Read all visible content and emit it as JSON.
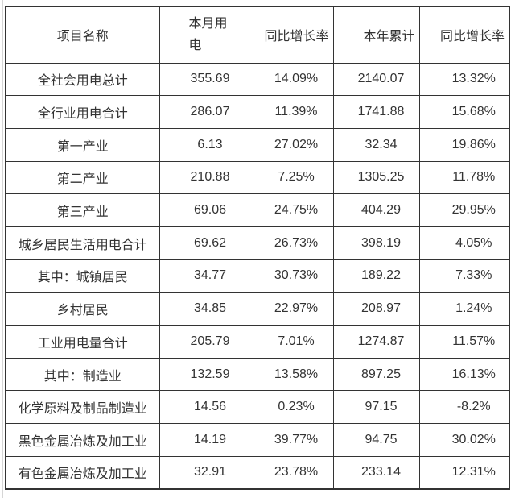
{
  "page": {
    "background": "#ffffff",
    "container_border_color": "#d6d6d6"
  },
  "table": {
    "border_color": "#333333",
    "text_color": "#333333",
    "columns": [
      {
        "key": "name",
        "label": "项目名称"
      },
      {
        "key": "month",
        "label": "本月用电"
      },
      {
        "key": "month_yoy",
        "label": "同比增长率"
      },
      {
        "key": "ytd",
        "label": "本年累计"
      },
      {
        "key": "ytd_yoy",
        "label": "同比增长率"
      }
    ],
    "rows": [
      {
        "name": "全社会用电总计",
        "month": "355.69",
        "month_yoy": "14.09%",
        "ytd": "2140.07",
        "ytd_yoy": "13.32%"
      },
      {
        "name": "全行业用电合计",
        "month": "286.07",
        "month_yoy": "11.39%",
        "ytd": "1741.88",
        "ytd_yoy": "15.68%"
      },
      {
        "name": "第一产业",
        "month": "6.13",
        "month_yoy": "27.02%",
        "ytd": "32.34",
        "ytd_yoy": "19.86%"
      },
      {
        "name": "第二产业",
        "month": "210.88",
        "month_yoy": "7.25%",
        "ytd": "1305.25",
        "ytd_yoy": "11.78%"
      },
      {
        "name": "第三产业",
        "month": "69.06",
        "month_yoy": "24.75%",
        "ytd": "404.29",
        "ytd_yoy": "29.95%"
      },
      {
        "name": "城乡居民生活用电合计",
        "month": "69.62",
        "month_yoy": "26.73%",
        "ytd": "398.19",
        "ytd_yoy": "4.05%"
      },
      {
        "name": "其中：城镇居民",
        "month": "34.77",
        "month_yoy": "30.73%",
        "ytd": "189.22",
        "ytd_yoy": "7.33%"
      },
      {
        "name": "乡村居民",
        "month": "34.85",
        "month_yoy": "22.97%",
        "ytd": "208.97",
        "ytd_yoy": "1.24%"
      },
      {
        "name": "工业用电量合计",
        "month": "205.79",
        "month_yoy": "7.01%",
        "ytd": "1274.87",
        "ytd_yoy": "11.57%"
      },
      {
        "name": "其中：制造业",
        "month": "132.59",
        "month_yoy": "13.58%",
        "ytd": "897.25",
        "ytd_yoy": "16.13%"
      },
      {
        "name": "化学原料及制品制造业",
        "month": "14.56",
        "month_yoy": "0.23%",
        "ytd": "97.15",
        "ytd_yoy": "-8.2%"
      },
      {
        "name": "黑色金属冶炼及加工业",
        "month": "14.19",
        "month_yoy": "39.77%",
        "ytd": "94.75",
        "ytd_yoy": "30.02%"
      },
      {
        "name": "有色金属冶炼及加工业",
        "month": "32.91",
        "month_yoy": "23.78%",
        "ytd": "233.14",
        "ytd_yoy": "12.31%"
      }
    ]
  },
  "chart_data": {
    "type": "table",
    "title": "",
    "columns": [
      "项目名称",
      "本月用电",
      "同比增长率",
      "本年累计",
      "同比增长率"
    ],
    "rows": [
      [
        "全社会用电总计",
        355.69,
        "14.09%",
        2140.07,
        "13.32%"
      ],
      [
        "全行业用电合计",
        286.07,
        "11.39%",
        1741.88,
        "15.68%"
      ],
      [
        "第一产业",
        6.13,
        "27.02%",
        32.34,
        "19.86%"
      ],
      [
        "第二产业",
        210.88,
        "7.25%",
        1305.25,
        "11.78%"
      ],
      [
        "第三产业",
        69.06,
        "24.75%",
        404.29,
        "29.95%"
      ],
      [
        "城乡居民生活用电合计",
        69.62,
        "26.73%",
        398.19,
        "4.05%"
      ],
      [
        "其中：城镇居民",
        34.77,
        "30.73%",
        189.22,
        "7.33%"
      ],
      [
        "乡村居民",
        34.85,
        "22.97%",
        208.97,
        "1.24%"
      ],
      [
        "工业用电量合计",
        205.79,
        "7.01%",
        1274.87,
        "11.57%"
      ],
      [
        "其中：制造业",
        132.59,
        "13.58%",
        897.25,
        "16.13%"
      ],
      [
        "化学原料及制品制造业",
        14.56,
        "0.23%",
        97.15,
        "-8.2%"
      ],
      [
        "黑色金属冶炼及加工业",
        14.19,
        "39.77%",
        94.75,
        "30.02%"
      ],
      [
        "有色金属冶炼及加工业",
        32.91,
        "23.78%",
        233.14,
        "12.31%"
      ]
    ]
  }
}
